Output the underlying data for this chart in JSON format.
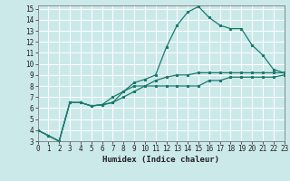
{
  "xlabel": "Humidex (Indice chaleur)",
  "xlim": [
    0,
    23
  ],
  "ylim": [
    3,
    15
  ],
  "yticks": [
    3,
    4,
    5,
    6,
    7,
    8,
    9,
    10,
    11,
    12,
    13,
    14,
    15
  ],
  "xticks": [
    0,
    1,
    2,
    3,
    4,
    5,
    6,
    7,
    8,
    9,
    10,
    11,
    12,
    13,
    14,
    15,
    16,
    17,
    18,
    19,
    20,
    21,
    22,
    23
  ],
  "bg_color": "#cce9ea",
  "grid_color": "#ffffff",
  "line_color": "#1a7a6e",
  "line1_y": [
    4.0,
    3.5,
    3.0,
    6.5,
    6.5,
    6.2,
    6.3,
    6.5,
    7.5,
    8.3,
    8.6,
    9.0,
    11.5,
    13.5,
    14.7,
    15.2,
    14.2,
    13.5,
    13.2,
    13.2,
    11.7,
    10.8,
    9.5,
    9.2
  ],
  "line2_y": [
    4.0,
    3.5,
    3.0,
    6.5,
    6.5,
    6.2,
    6.3,
    6.5,
    7.0,
    7.5,
    8.0,
    8.5,
    8.8,
    9.0,
    9.0,
    9.2,
    9.2,
    9.2,
    9.2,
    9.2,
    9.2,
    9.2,
    9.2,
    9.2
  ],
  "line3_y": [
    4.0,
    3.5,
    3.0,
    6.5,
    6.5,
    6.2,
    6.3,
    7.0,
    7.5,
    8.0,
    8.0,
    8.0,
    8.0,
    8.0,
    8.0,
    8.0,
    8.5,
    8.5,
    8.8,
    8.8,
    8.8,
    8.8,
    8.8,
    9.0
  ],
  "tick_fontsize": 5.5,
  "xlabel_fontsize": 6.5,
  "marker_size": 2.0,
  "linewidth": 0.9
}
